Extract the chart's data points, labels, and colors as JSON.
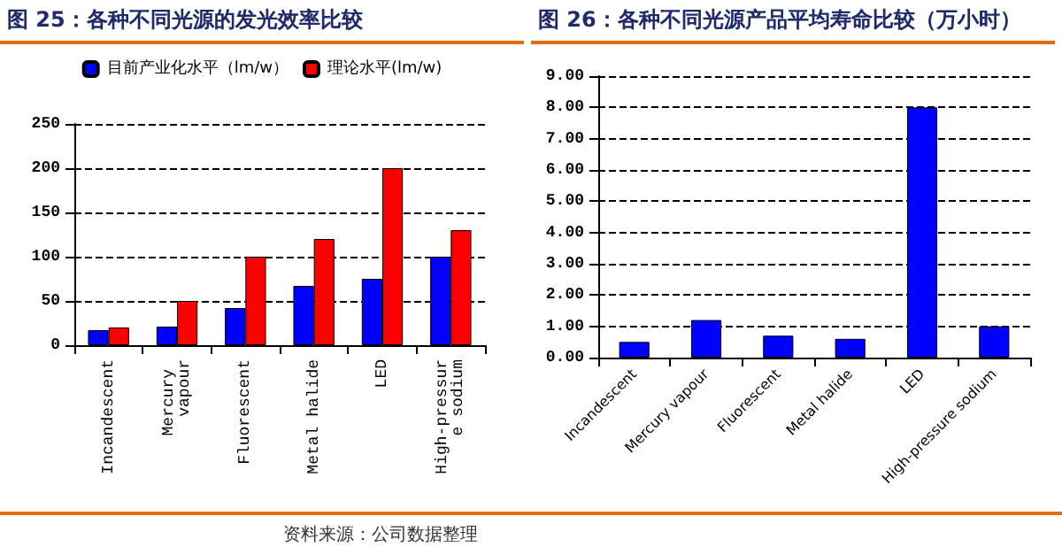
{
  "chart_data": [
    {
      "type": "bar",
      "title": "图 25：各种不同光源的发光效率比较",
      "categories": [
        "Incandescent",
        "Mercury vapour",
        "Fluorescent",
        "Metal halide",
        "LED",
        "High-pressure sodium"
      ],
      "series": [
        {
          "name": "目前产业化水平（lm/w）",
          "color": "#0000ff",
          "values": [
            17,
            21,
            42,
            67,
            75,
            100
          ]
        },
        {
          "name": "理论水平(lm/w)",
          "color": "#ff0000",
          "values": [
            20,
            50,
            100,
            120,
            200,
            130
          ]
        }
      ],
      "ylim": [
        0,
        250
      ],
      "yticks": [
        0,
        50,
        100,
        150,
        200,
        250
      ],
      "grid": "y",
      "legend": "top",
      "annotations": [
        "资料来源：公司数据整理"
      ]
    },
    {
      "type": "bar",
      "title": "图 26：各种不同光源产品平均寿命比较（万小时）",
      "categories": [
        "Incandescent",
        "Mercury vapour",
        "Fluorescent",
        "Metal halide",
        "LED",
        "High-pressure sodium"
      ],
      "values": [
        0.5,
        1.2,
        0.7,
        0.6,
        8.0,
        1.0
      ],
      "color": "#0000ff",
      "ylim": [
        0,
        9
      ],
      "yticks": [
        {
          "value": 0,
          "label": "0.00"
        },
        {
          "value": 1,
          "label": "1.00"
        },
        {
          "value": 2,
          "label": "2.00"
        },
        {
          "value": 3,
          "label": "3.00"
        },
        {
          "value": 4,
          "label": "4.00"
        },
        {
          "value": 5,
          "label": "5.00"
        },
        {
          "value": 6,
          "label": "6.00"
        },
        {
          "value": 7,
          "label": "7.00"
        },
        {
          "value": 8,
          "label": "8.00"
        },
        {
          "value": 9,
          "label": "9.00"
        }
      ],
      "grid": "y"
    }
  ]
}
